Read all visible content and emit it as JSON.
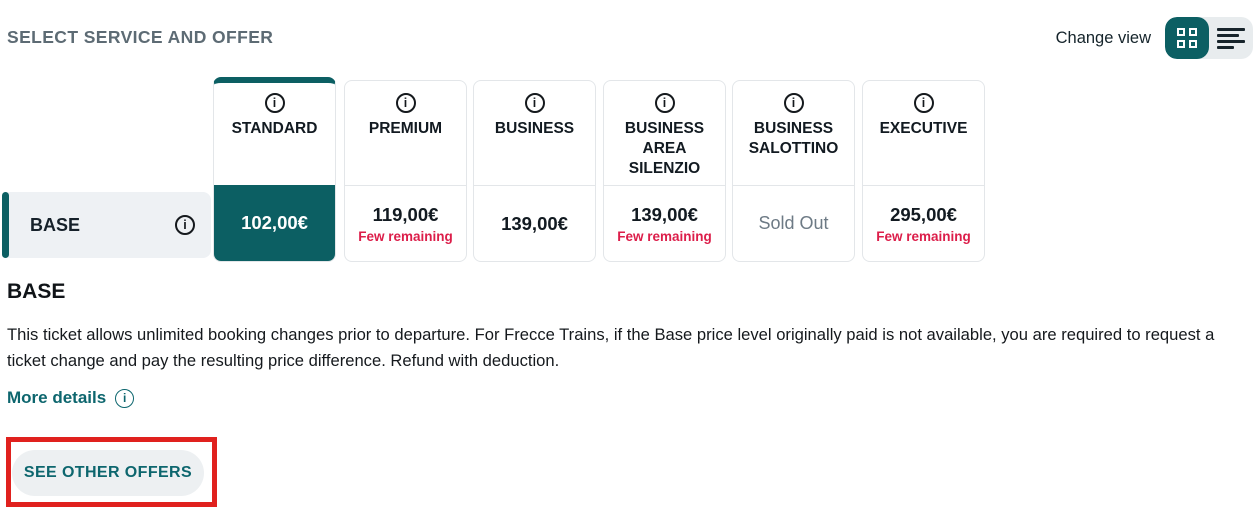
{
  "header": {
    "title": "SELECT SERVICE AND OFFER",
    "change_view_label": "Change view"
  },
  "icons": {
    "info_glyph": "i",
    "grid_view": "2x2-squares",
    "list_view": "horizontal-lines"
  },
  "columns": [
    {
      "label": "STANDARD",
      "selected": true
    },
    {
      "label": "PREMIUM",
      "selected": false
    },
    {
      "label": "BUSINESS",
      "selected": false
    },
    {
      "label": "BUSINESS AREA SILENZIO",
      "selected": false
    },
    {
      "label": "BUSINESS SALOTTINO",
      "selected": false
    },
    {
      "label": "EXECUTIVE",
      "selected": false
    }
  ],
  "row": {
    "label": "BASE",
    "cells": [
      {
        "price": "102,00€",
        "selected": true
      },
      {
        "price": "119,00€",
        "note": "Few remaining"
      },
      {
        "price": "139,00€"
      },
      {
        "price": "139,00€",
        "note": "Few remaining"
      },
      {
        "soldout": "Sold Out"
      },
      {
        "price": "295,00€",
        "note": "Few remaining"
      }
    ]
  },
  "details": {
    "title": "BASE",
    "description": "This ticket allows unlimited booking changes prior to departure. For Frecce Trains, if the Base price level originally paid is not available, you are required to request a ticket change and pay the resulting price difference. Refund with deduction.",
    "more_details_label": "More details",
    "see_other_offers_label": "SEE OTHER OFFERS"
  },
  "colors": {
    "teal": "#0c5f63",
    "light_row_bg": "#eef1f4",
    "card_border": "#e3e6e9",
    "few_remaining_red": "#dc1e4a",
    "sold_out_gray": "#6d7a85",
    "annotation_red": "#e0211e",
    "title_gray": "#5d6b74",
    "toggle_bg": "#e8ecee"
  }
}
